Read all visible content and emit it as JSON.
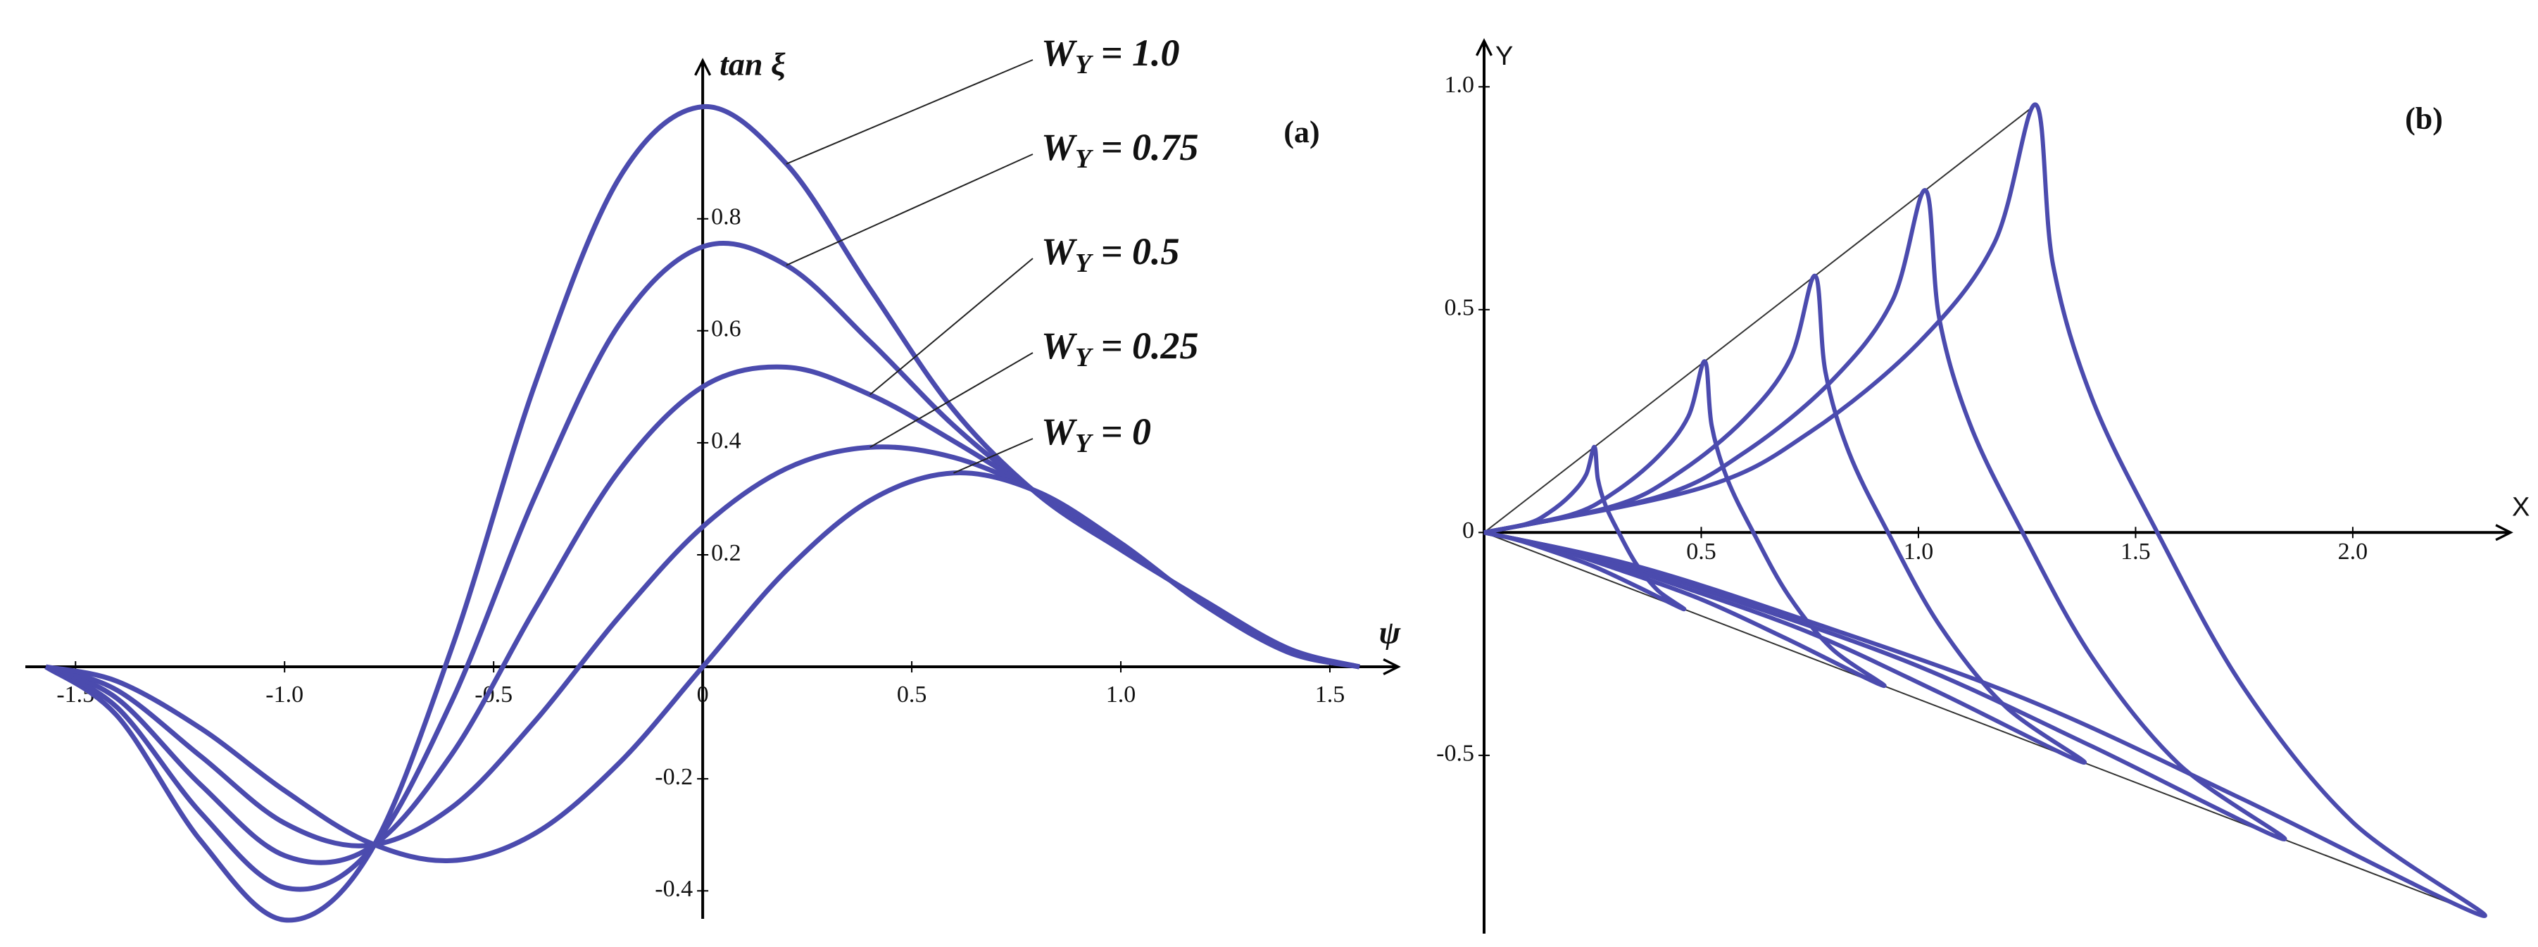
{
  "chart_data": [
    {
      "type": "line",
      "x": [
        -1.5708,
        -1.4,
        -1.2,
        -1.0,
        -0.8,
        -0.6,
        -0.4,
        -0.2,
        0,
        0.2,
        0.4,
        0.6,
        0.8,
        1.0,
        1.2,
        1.4,
        1.5708
      ],
      "series": [
        {
          "name": "WY = 1.0",
          "color": "#4b4bae",
          "values": [
            0,
            -0.088,
            -0.311,
            -0.452,
            -0.337,
            0.034,
            0.507,
            0.872,
            1.0,
            0.898,
            0.675,
            0.459,
            0.309,
            0.209,
            0.118,
            0.033,
            0
          ]
        },
        {
          "name": "WY = 0.75",
          "color": "#4b4bae",
          "values": [
            0,
            -0.073,
            -0.261,
            -0.394,
            -0.331,
            -0.061,
            0.306,
            0.611,
            0.75,
            0.717,
            0.581,
            0.431,
            0.31,
            0.212,
            0.116,
            0.031,
            0
          ]
        },
        {
          "name": "WY = 0.5",
          "color": "#4b4bae",
          "values": [
            0,
            -0.057,
            -0.211,
            -0.337,
            -0.325,
            -0.156,
            0.105,
            0.35,
            0.5,
            0.535,
            0.486,
            0.403,
            0.311,
            0.215,
            0.114,
            0.03,
            0
          ]
        },
        {
          "name": "WY = 0.25",
          "color": "#4b4bae",
          "values": [
            0,
            -0.042,
            -0.16,
            -0.279,
            -0.319,
            -0.251,
            -0.096,
            0.089,
            0.25,
            0.354,
            0.392,
            0.374,
            0.312,
            0.218,
            0.112,
            0.028,
            0
          ]
        },
        {
          "name": "WY = 0",
          "color": "#4b4bae",
          "values": [
            0,
            -0.026,
            -0.11,
            -0.221,
            -0.313,
            -0.346,
            -0.297,
            -0.172,
            0,
            0.172,
            0.297,
            0.346,
            0.313,
            0.221,
            0.11,
            0.026,
            0
          ]
        }
      ],
      "xlim": [
        -1.62,
        1.66
      ],
      "ylim": [
        -0.45,
        1.08
      ],
      "xticks": [
        -1.5,
        {
          "value": -1,
          "label": "-1.0"
        },
        -0.5,
        0,
        0.5,
        {
          "value": 1,
          "label": "1.0"
        },
        1.5
      ],
      "yticks": [
        -0.4,
        -0.2,
        0.2,
        0.4,
        0.6,
        0.8
      ],
      "xlabel": "ψ",
      "ylabel": "tan ξ",
      "annotation": "(a)"
    },
    {
      "type": "parametric",
      "series": [
        {
          "color": "#4b4bae",
          "x": [
            0,
            0.1,
            0.15,
            0.2,
            0.235,
            0.254,
            0.262,
            0.28,
            0.31,
            0.35,
            0.4,
            0.46,
            0.35,
            0.25,
            0.15,
            0.07,
            0
          ],
          "y": [
            0,
            0.02,
            0.045,
            0.085,
            0.13,
            0.192,
            0.12,
            0.06,
            0,
            -0.07,
            -0.13,
            -0.172,
            -0.12,
            -0.075,
            -0.04,
            -0.015,
            0
          ]
        },
        {
          "color": "#4b4bae",
          "x": [
            0,
            0.2,
            0.3,
            0.4,
            0.47,
            0.508,
            0.524,
            0.56,
            0.62,
            0.7,
            0.8,
            0.92,
            0.7,
            0.5,
            0.3,
            0.14,
            0
          ],
          "y": [
            0,
            0.04,
            0.09,
            0.17,
            0.26,
            0.384,
            0.24,
            0.12,
            0,
            -0.14,
            -0.26,
            -0.344,
            -0.24,
            -0.15,
            -0.08,
            -0.03,
            0
          ]
        },
        {
          "color": "#4b4bae",
          "x": [
            0,
            0.3,
            0.45,
            0.6,
            0.705,
            0.762,
            0.786,
            0.84,
            0.93,
            1.05,
            1.2,
            1.38,
            1.05,
            0.75,
            0.45,
            0.21,
            0
          ],
          "y": [
            0,
            0.06,
            0.135,
            0.255,
            0.39,
            0.576,
            0.36,
            0.18,
            0,
            -0.21,
            -0.39,
            -0.516,
            -0.36,
            -0.225,
            -0.12,
            -0.045,
            0
          ]
        },
        {
          "color": "#4b4bae",
          "x": [
            0,
            0.4,
            0.6,
            0.8,
            0.94,
            1.016,
            1.048,
            1.12,
            1.24,
            1.4,
            1.6,
            1.84,
            1.4,
            1.0,
            0.6,
            0.28,
            0
          ],
          "y": [
            0,
            0.08,
            0.18,
            0.34,
            0.52,
            0.768,
            0.48,
            0.24,
            0,
            -0.28,
            -0.52,
            -0.688,
            -0.48,
            -0.3,
            -0.16,
            -0.06,
            0
          ]
        },
        {
          "color": "#4b4bae",
          "x": [
            0,
            0.5,
            0.75,
            1.0,
            1.175,
            1.27,
            1.31,
            1.4,
            1.55,
            1.75,
            2.0,
            2.3,
            1.75,
            1.25,
            0.75,
            0.35,
            0
          ],
          "y": [
            0,
            0.1,
            0.225,
            0.425,
            0.65,
            0.96,
            0.6,
            0.3,
            0,
            -0.35,
            -0.65,
            -0.86,
            -0.6,
            -0.375,
            -0.2,
            -0.075,
            0
          ]
        }
      ],
      "reference_lines": [
        {
          "color": "#333333",
          "x": [
            0,
            1.27
          ],
          "y": [
            0,
            0.96
          ]
        },
        {
          "color": "#333333",
          "x": [
            0,
            2.3
          ],
          "y": [
            0,
            -0.86
          ]
        }
      ],
      "xlim": [
        0,
        2.36
      ],
      "ylim": [
        -0.9,
        1.1
      ],
      "xticks": [
        0.5,
        {
          "value": 1,
          "label": "1.0"
        },
        1.5,
        {
          "value": 2,
          "label": "2.0"
        }
      ],
      "yticks": [
        -0.5,
        0,
        0.5,
        {
          "value": 1,
          "label": "1.0"
        }
      ],
      "xlabel": "X",
      "ylabel": "Y",
      "annotation": "(b)"
    }
  ]
}
